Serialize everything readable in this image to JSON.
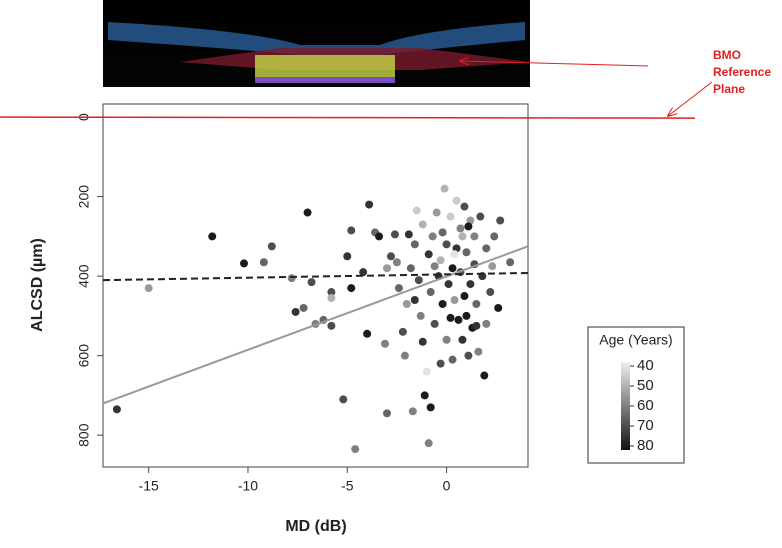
{
  "chart_data": {
    "type": "scatter",
    "x_label": "MD (dB)",
    "y_label": "ALCSD (µm)",
    "xlim": [
      -17.3,
      4.1
    ],
    "xticks": [
      -15,
      -10,
      -5,
      0
    ],
    "ylim": [
      880,
      -33
    ],
    "yticks": [
      0,
      200,
      400,
      600,
      800
    ],
    "x": [
      -16.6,
      -15,
      -11.8,
      -10.2,
      -9.2,
      -8.8,
      -7.8,
      -7.6,
      -7,
      -7.2,
      -6.8,
      -6.6,
      -6.2,
      -5.8,
      -5.8,
      -5.8,
      -5.2,
      -5,
      -4.8,
      -4.8,
      -4.6,
      -4.2,
      -4,
      -3.9,
      -3.6,
      -3.4,
      -3.1,
      -3,
      -3,
      -2.8,
      -2.6,
      -2.5,
      -2.4,
      -2.2,
      -2.1,
      -2,
      -1.9,
      -1.8,
      -1.7,
      -1.6,
      -1.5,
      -1.4,
      -1.3,
      -1.2,
      -1.2,
      -1.1,
      -1,
      -0.9,
      -0.9,
      -0.8,
      -0.8,
      -0.7,
      -0.6,
      -0.5,
      -0.4,
      -0.3,
      -0.2,
      -0.2,
      -0.1,
      0,
      0,
      0.1,
      0.2,
      0.3,
      0.3,
      0.4,
      0.5,
      0.5,
      0.6,
      0.7,
      0.7,
      0.8,
      0.9,
      0.9,
      1,
      1,
      1.1,
      1.2,
      1.2,
      1.3,
      1.4,
      1.4,
      1.5,
      1.6,
      1.7,
      1.8,
      1.9,
      2,
      2,
      2.2,
      2.4,
      2.6,
      2.7,
      3.2,
      -0.3,
      0.4,
      -1.6,
      1.1,
      0.2,
      1.5,
      -0.6,
      2.3,
      0.8
    ],
    "values": [
      735,
      430,
      300,
      368,
      365,
      325,
      405,
      490,
      240,
      480,
      415,
      520,
      510,
      440,
      455,
      525,
      710,
      350,
      285,
      430,
      835,
      390,
      545,
      220,
      290,
      300,
      570,
      745,
      380,
      350,
      295,
      365,
      430,
      540,
      600,
      470,
      295,
      380,
      740,
      320,
      235,
      410,
      500,
      270,
      565,
      700,
      640,
      820,
      345,
      730,
      440,
      300,
      520,
      240,
      400,
      360,
      470,
      290,
      180,
      560,
      320,
      420,
      250,
      380,
      610,
      460,
      210,
      330,
      510,
      280,
      390,
      560,
      225,
      450,
      340,
      500,
      600,
      260,
      420,
      530,
      300,
      370,
      470,
      590,
      250,
      400,
      650,
      330,
      520,
      440,
      300,
      480,
      260,
      365,
      620,
      345,
      460,
      275,
      505,
      525,
      375,
      375,
      300
    ],
    "ages": [
      75,
      55,
      80,
      80,
      65,
      70,
      60,
      75,
      80,
      65,
      70,
      60,
      65,
      70,
      50,
      70,
      70,
      75,
      70,
      80,
      60,
      75,
      80,
      75,
      65,
      80,
      60,
      65,
      55,
      70,
      70,
      60,
      65,
      70,
      60,
      55,
      75,
      65,
      60,
      65,
      45,
      70,
      60,
      50,
      75,
      80,
      40,
      60,
      75,
      80,
      65,
      60,
      70,
      55,
      75,
      50,
      80,
      65,
      50,
      60,
      70,
      75,
      45,
      80,
      65,
      55,
      45,
      75,
      80,
      60,
      70,
      75,
      70,
      80,
      65,
      80,
      70,
      55,
      75,
      80,
      60,
      70,
      65,
      60,
      70,
      75,
      80,
      65,
      60,
      70,
      65,
      80,
      70,
      65,
      70,
      40,
      75,
      80,
      80,
      75,
      60,
      55,
      50
    ],
    "color_title": "Age (Years)",
    "color_lim": [
      38,
      82
    ],
    "color_ticks": [
      40,
      50,
      60,
      70,
      80
    ],
    "color_range": [
      "#eeeeee",
      "#111111"
    ],
    "lines": [
      {
        "style": "solid",
        "color": "#999999",
        "x": [
          -17.3,
          4.1
        ],
        "values": [
          720,
          325
        ]
      },
      {
        "style": "dashed",
        "color": "#222222",
        "x": [
          -17.3,
          4.1
        ],
        "values": [
          410,
          392
        ]
      }
    ],
    "reference_line": {
      "value": 0,
      "color": "#e02020"
    },
    "annotation": [
      "BMO",
      "Reference",
      "Plane"
    ]
  }
}
